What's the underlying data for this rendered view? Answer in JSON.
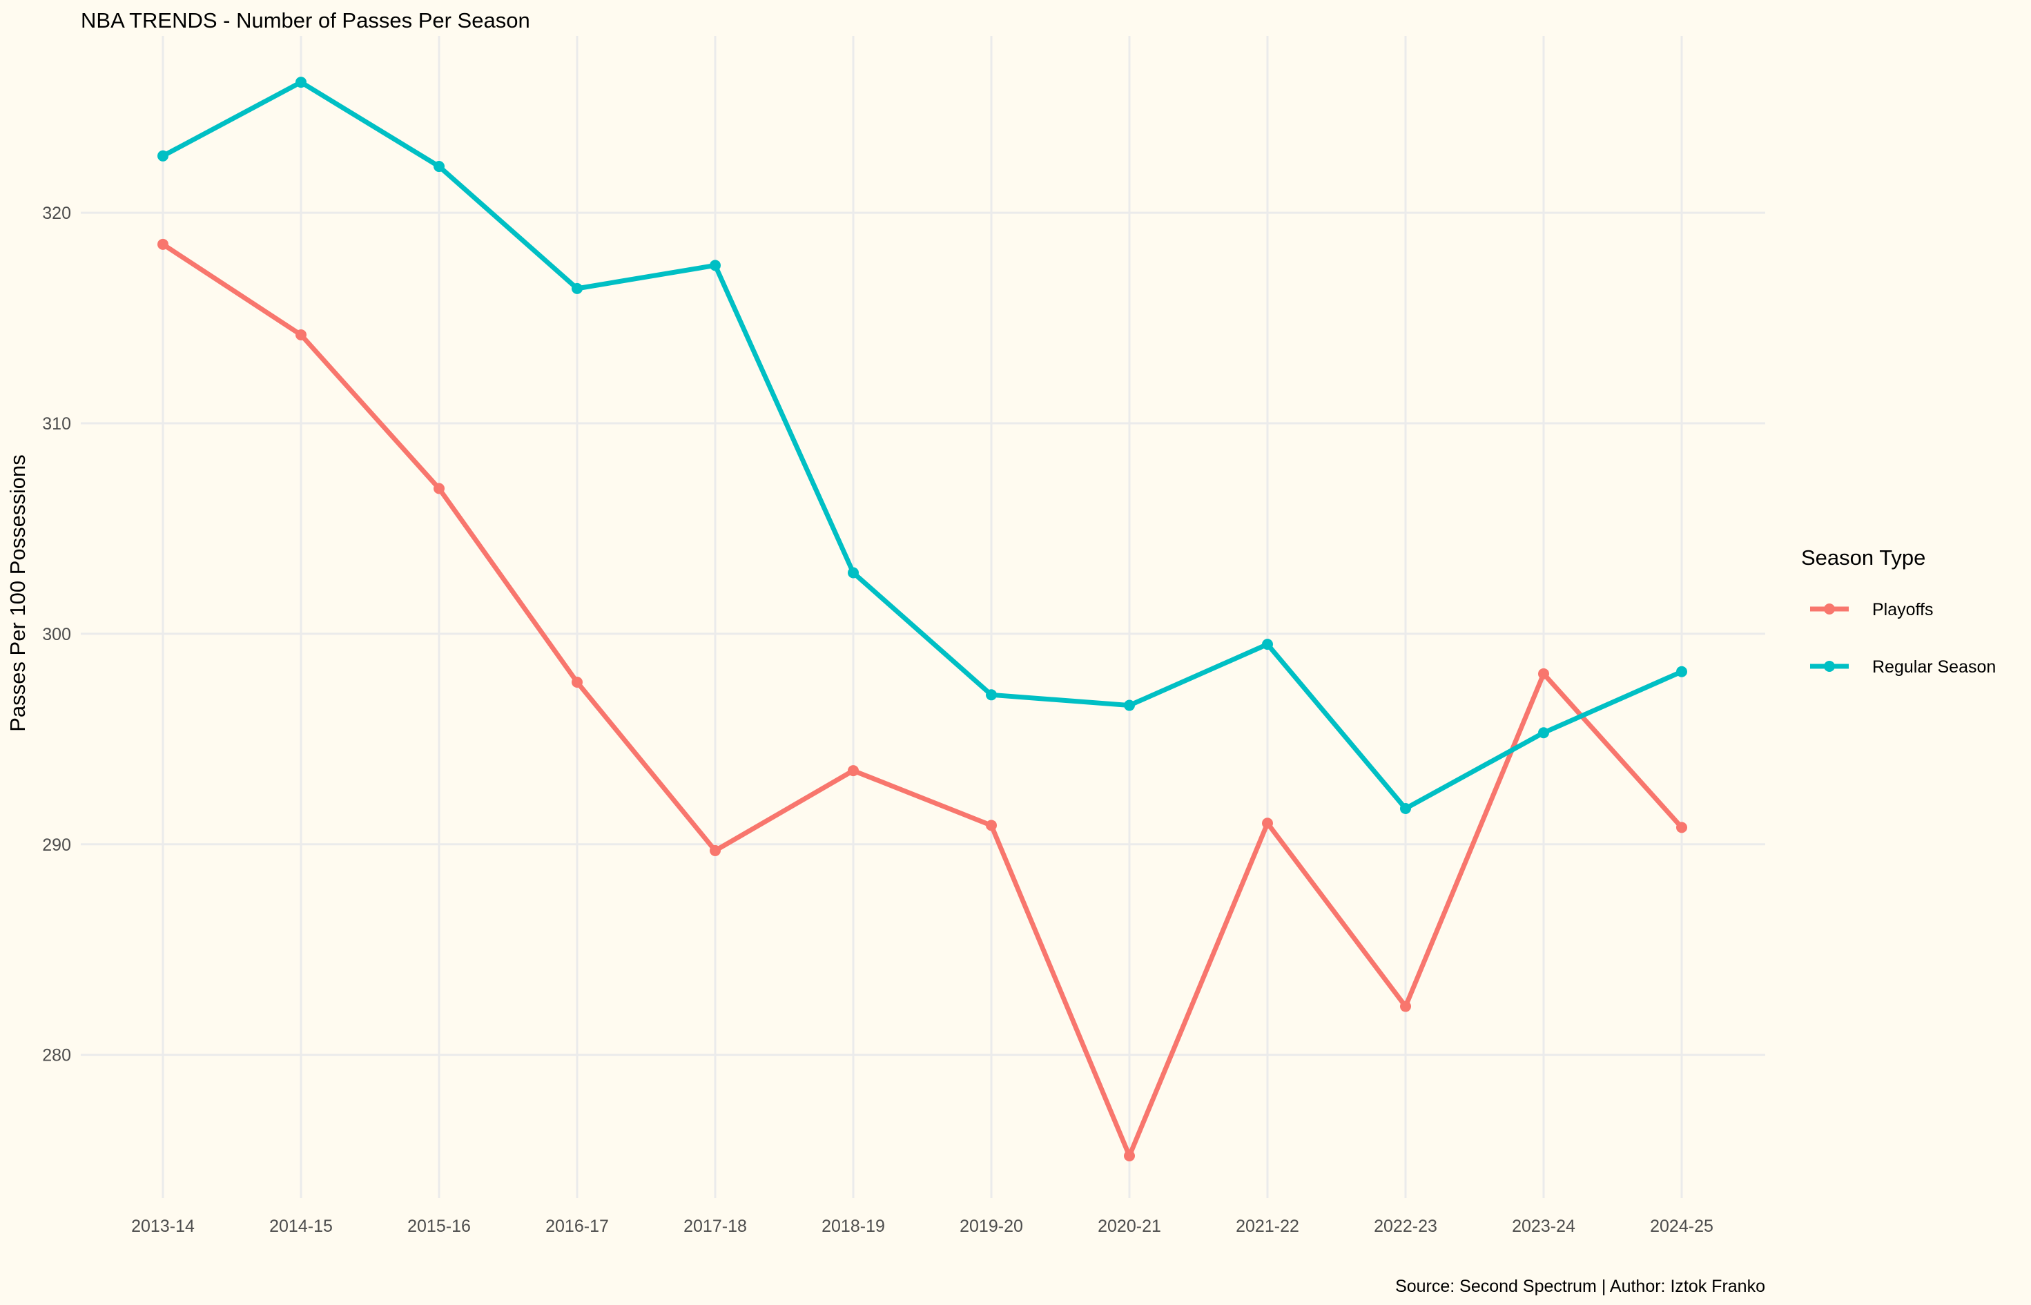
{
  "chart_data": {
    "type": "line",
    "title": "NBA TRENDS - Number of Passes Per Season",
    "xlabel": "",
    "ylabel": "Passes Per 100 Possessions",
    "categories": [
      "2013-14",
      "2014-15",
      "2015-16",
      "2016-17",
      "2017-18",
      "2018-19",
      "2019-20",
      "2020-21",
      "2021-22",
      "2022-23",
      "2023-24",
      "2024-25"
    ],
    "yticks": [
      280,
      290,
      300,
      310,
      320
    ],
    "ylim": [
      273.2,
      328.4
    ],
    "grid": true,
    "legend": {
      "title": "Season Type",
      "placement": "right"
    },
    "series": [
      {
        "name": "Playoffs",
        "color": "#f8766d",
        "values": [
          318.5,
          314.2,
          306.9,
          297.7,
          289.7,
          293.5,
          290.9,
          275.2,
          291.0,
          282.3,
          298.1,
          290.8
        ]
      },
      {
        "name": "Regular Season",
        "color": "#00bfc4",
        "values": [
          322.7,
          326.2,
          322.2,
          316.4,
          317.5,
          302.9,
          297.1,
          296.6,
          299.5,
          291.7,
          295.3,
          298.2
        ]
      }
    ],
    "caption": "Source: Second Spectrum | Author: Iztok Franko"
  }
}
